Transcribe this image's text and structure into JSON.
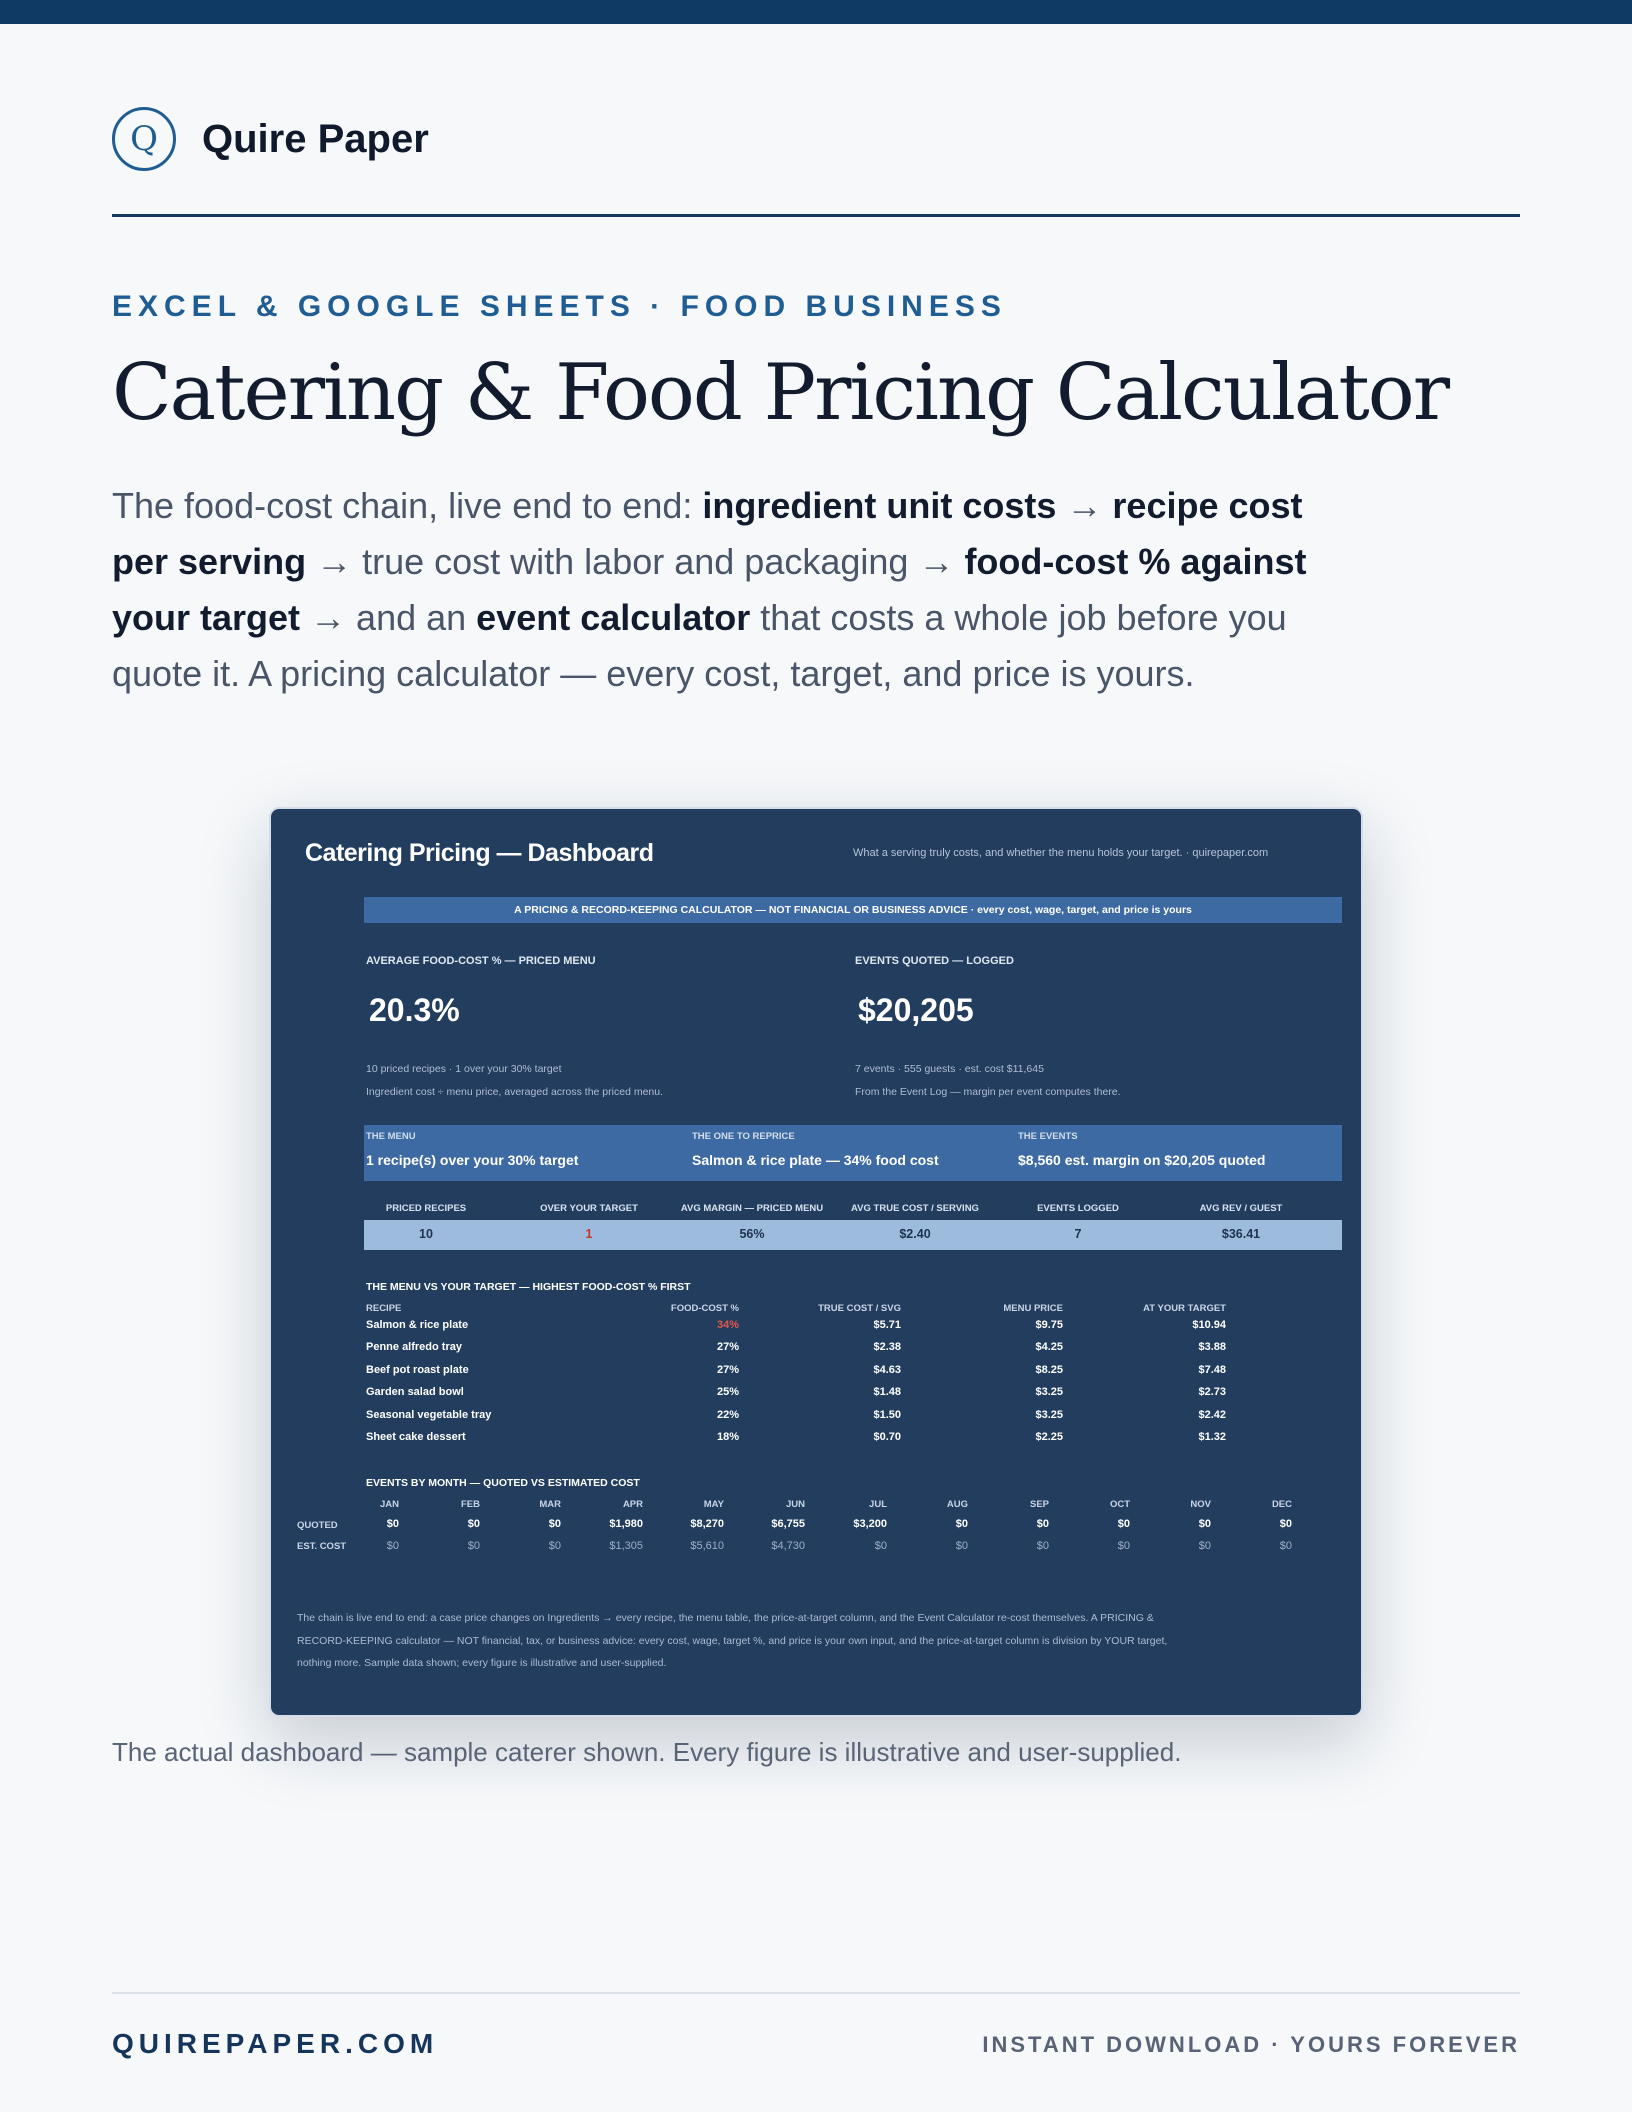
{
  "brand": {
    "mark": "Q",
    "name": "Quire Paper"
  },
  "eyebrow": "EXCEL & GOOGLE SHEETS · FOOD BUSINESS",
  "title": "Catering & Food Pricing Calculator",
  "lede": [
    {
      "t": "The food-cost chain, live end to end: ",
      "b": false
    },
    {
      "t": "ingredient unit costs",
      "b": true
    },
    {
      "t": " → ",
      "b": false
    },
    {
      "t": "recipe cost per serving",
      "b": true
    },
    {
      "t": " → true cost with labor and packaging → ",
      "b": false
    },
    {
      "t": "food-cost % against your target",
      "b": true
    },
    {
      "t": " → and an ",
      "b": false
    },
    {
      "t": "event calculator",
      "b": true
    },
    {
      "t": " that costs a whole job before you quote it. A pricing calculator — every cost, target, and price is yours.",
      "b": false
    }
  ],
  "dashboard": {
    "title": "Catering Pricing — Dashboard",
    "tagline": "What a serving truly costs, and whether the menu holds your target.  ·  quirepaper.com",
    "banner": "A PRICING & RECORD-KEEPING CALCULATOR — NOT FINANCIAL OR BUSINESS ADVICE  ·  every cost, wage, target, and price is yours",
    "kpi_left": {
      "label": "AVERAGE FOOD-COST % — PRICED MENU",
      "value": "20.3%",
      "sub1": "10 priced recipes  ·  1 over your 30% target",
      "sub2": "Ingredient cost ÷ menu price, averaged across the priced menu."
    },
    "kpi_right": {
      "label": "EVENTS QUOTED — LOGGED",
      "value": "$20,205",
      "sub1": "7 events  ·  555 guests  ·  est. cost $11,645",
      "sub2": "From the Event Log — margin per event computes there."
    },
    "strip": [
      {
        "label": "THE MENU",
        "value": "1 recipe(s) over your 30% target"
      },
      {
        "label": "THE ONE TO REPRICE",
        "value": "Salmon & rice plate — 34% food cost"
      },
      {
        "label": "THE EVENTS",
        "value": "$8,560 est. margin on $20,205 quoted"
      }
    ],
    "stats": {
      "headers": [
        "PRICED RECIPES",
        "OVER YOUR TARGET",
        "AVG MARGIN — PRICED MENU",
        "AVG TRUE COST / SERVING",
        "EVENTS LOGGED",
        "AVG REV / GUEST"
      ],
      "values": [
        "10",
        "1",
        "56%",
        "$2.40",
        "7",
        "$36.41"
      ]
    },
    "menu": {
      "title": "THE MENU VS YOUR TARGET — HIGHEST FOOD-COST % FIRST",
      "columns": [
        "RECIPE",
        "FOOD-COST %",
        "TRUE COST / SVG",
        "MENU PRICE",
        "AT YOUR TARGET"
      ],
      "rows": [
        [
          "Salmon & rice plate",
          "34%",
          "$5.71",
          "$9.75",
          "$10.94"
        ],
        [
          "Penne alfredo tray",
          "27%",
          "$2.38",
          "$4.25",
          "$3.88"
        ],
        [
          "Beef pot roast plate",
          "27%",
          "$4.63",
          "$8.25",
          "$7.48"
        ],
        [
          "Garden salad bowl",
          "25%",
          "$1.48",
          "$3.25",
          "$2.73"
        ],
        [
          "Seasonal vegetable tray",
          "22%",
          "$1.50",
          "$3.25",
          "$2.42"
        ],
        [
          "Sheet cake dessert",
          "18%",
          "$0.70",
          "$2.25",
          "$1.32"
        ]
      ]
    },
    "months": {
      "title": "EVENTS BY MONTH — QUOTED VS ESTIMATED COST",
      "labels": [
        "JAN",
        "FEB",
        "MAR",
        "APR",
        "MAY",
        "JUN",
        "JUL",
        "AUG",
        "SEP",
        "OCT",
        "NOV",
        "DEC"
      ],
      "quoted_label": "QUOTED",
      "cost_label": "EST. COST",
      "quoted": [
        "$0",
        "$0",
        "$0",
        "$1,980",
        "$8,270",
        "$6,755",
        "$3,200",
        "$0",
        "$0",
        "$0",
        "$0",
        "$0"
      ],
      "cost": [
        "$0",
        "$0",
        "$0",
        "$1,305",
        "$5,610",
        "$4,730",
        "$0",
        "$0",
        "$0",
        "$0",
        "$0",
        "$0"
      ]
    },
    "fineprint": "The chain is live end to end: a case price changes on Ingredients → every recipe, the menu table, the price-at-target column, and the Event Calculator re-cost themselves. A PRICING & RECORD-KEEPING calculator — NOT financial, tax, or business advice: every cost, wage, target %, and price is your own input, and the price-at-target column is division by YOUR target, nothing more. Sample data shown; every figure is illustrative and user-supplied."
  },
  "caption": "The actual dashboard — sample caterer shown. Every figure is illustrative and user-supplied.",
  "footer": {
    "left": "QUIREPAPER.COM",
    "right": "INSTANT DOWNLOAD · YOURS FOREVER"
  },
  "colors": {
    "navy": "#0f3a63",
    "accent": "#1f5d93",
    "panel": "#233d5f",
    "alert": "#e0574a"
  }
}
